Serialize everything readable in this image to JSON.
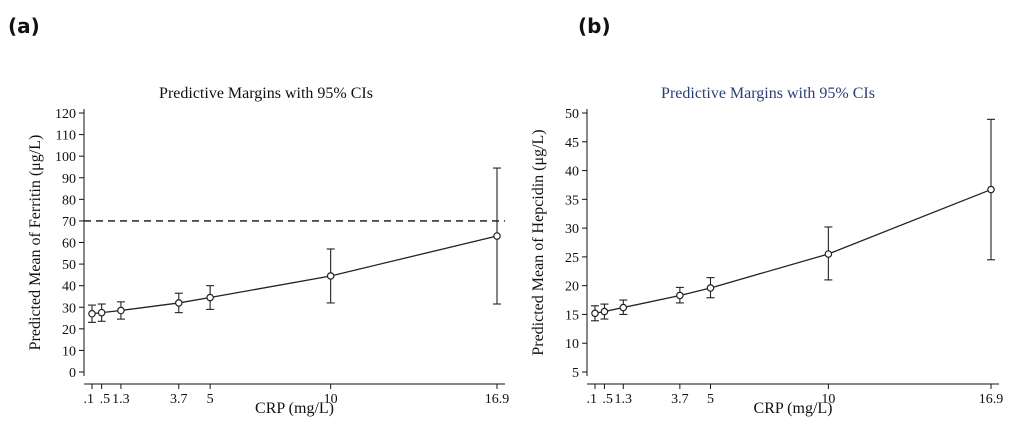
{
  "panels": [
    {
      "label": "(a)",
      "chart_data": {
        "type": "line",
        "title": "Predictive Margins with 95% CIs",
        "title_color": "#111111",
        "xlabel": "CRP (mg/L)",
        "ylabel": "Predicted Mean of Ferritin (μg/L)",
        "x_ticks": [
          0.1,
          0.5,
          1.3,
          3.7,
          5,
          10,
          16.9
        ],
        "x_tick_labels": [
          ".1",
          ".5",
          "1.3",
          "3.7",
          "5",
          "10",
          "16.9"
        ],
        "xlim": [
          0.1,
          16.9
        ],
        "y_ticks": [
          0,
          10,
          20,
          30,
          40,
          50,
          60,
          70,
          80,
          90,
          100,
          110,
          120
        ],
        "y_tick_labels": [
          "0",
          "10",
          "20",
          "30",
          "40",
          "50",
          "60",
          "70",
          "80",
          "90",
          "100",
          "110",
          "120"
        ],
        "ylim": [
          0,
          120
        ],
        "reference_line": {
          "y": 70,
          "style": "dashed"
        },
        "series": [
          {
            "x": [
              0.1,
              0.5,
              1.3,
              3.7,
              5,
              10,
              16.9
            ],
            "y": [
              27,
              27.5,
              28.5,
              32,
              34.5,
              44.5,
              63
            ],
            "ci_low": [
              23,
              23.5,
              24.5,
              27.5,
              29,
              32,
              31.5
            ],
            "ci_high": [
              31,
              31.5,
              32.5,
              36.5,
              40,
              57,
              94.5
            ]
          }
        ]
      }
    },
    {
      "label": "(b)",
      "chart_data": {
        "type": "line",
        "title": "Predictive Margins with 95% CIs",
        "title_color": "#2a3f7a",
        "xlabel": "CRP (mg/L)",
        "ylabel": "Predicted Mean of Hepcidin (μg/L)",
        "x_ticks": [
          0.1,
          0.5,
          1.3,
          3.7,
          5,
          10,
          16.9
        ],
        "x_tick_labels": [
          ".1",
          ".5",
          "1.3",
          "3.7",
          "5",
          "10",
          "16.9"
        ],
        "xlim": [
          0.1,
          16.9
        ],
        "y_ticks": [
          5,
          10,
          15,
          20,
          25,
          30,
          35,
          40,
          45,
          50
        ],
        "y_tick_labels": [
          "5",
          "10",
          "15",
          "20",
          "25",
          "30",
          "35",
          "40",
          "45",
          "50"
        ],
        "ylim": [
          5,
          50
        ],
        "series": [
          {
            "x": [
              0.1,
              0.5,
              1.3,
              3.7,
              5,
              10,
              16.9
            ],
            "y": [
              15.2,
              15.5,
              16.2,
              18.3,
              19.6,
              25.5,
              36.7
            ],
            "ci_low": [
              13.9,
              14.2,
              15,
              17,
              17.9,
              21,
              24.5
            ],
            "ci_high": [
              16.5,
              16.8,
              17.5,
              19.7,
              21.4,
              30.2,
              48.9
            ]
          }
        ]
      }
    }
  ]
}
